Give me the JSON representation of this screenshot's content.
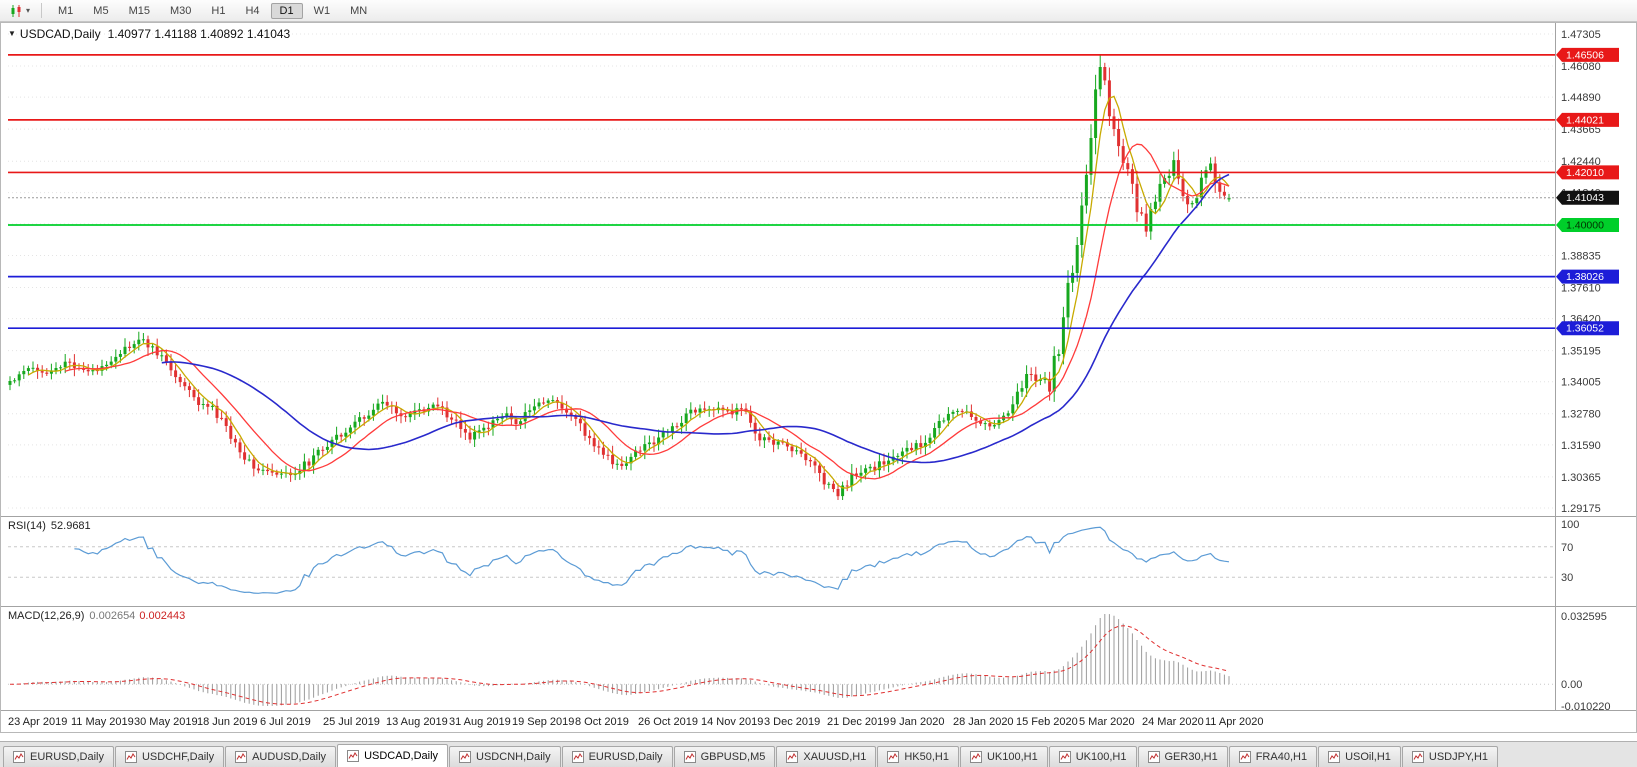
{
  "toolbar": {
    "chart_type_tooltip": "Charts",
    "timeframes": [
      "M1",
      "M5",
      "M15",
      "M30",
      "H1",
      "H4",
      "D1",
      "W1",
      "MN"
    ],
    "active_timeframe": "D1"
  },
  "chart": {
    "title": "USDCAD,Daily",
    "ohlc_text": "1.40977 1.41188 1.40892 1.41043",
    "open": "1.40977",
    "high": "1.41188",
    "low": "1.40892",
    "close": "1.41043",
    "current_price": "1.41043",
    "price_range": {
      "top": 1.47305,
      "bottom": 1.29175
    },
    "y_axis_labels": [
      "1.47305",
      "1.46080",
      "1.44890",
      "1.43665",
      "1.42440",
      "1.41240",
      "1.40040",
      "1.38835",
      "1.37610",
      "1.36420",
      "1.35195",
      "1.34005",
      "1.32780",
      "1.31590",
      "1.30365",
      "1.29175"
    ],
    "x_axis_labels": [
      "23 Apr 2019",
      "11 May 2019",
      "30 May 2019",
      "18 Jun 2019",
      "6 Jul 2019",
      "25 Jul 2019",
      "13 Aug 2019",
      "31 Aug 2019",
      "19 Sep 2019",
      "8 Oct 2019",
      "26 Oct 2019",
      "14 Nov 2019",
      "3 Dec 2019",
      "21 Dec 2019",
      "9 Jan 2020",
      "28 Jan 2020",
      "15 Feb 2020",
      "5 Mar 2020",
      "24 Mar 2020",
      "11 Apr 2020"
    ],
    "levels": [
      {
        "label": "1.46506",
        "price": 1.46506,
        "color": "#e81818",
        "text_color": "#ffffff"
      },
      {
        "label": "1.44021",
        "price": 1.44021,
        "color": "#e81818",
        "text_color": "#ffffff"
      },
      {
        "label": "1.42010",
        "price": 1.4201,
        "color": "#e81818",
        "text_color": "#ffffff"
      },
      {
        "label": "1.40000",
        "price": 1.4,
        "color": "#00cf2a",
        "text_color": "#003300"
      },
      {
        "label": "1.38026",
        "price": 1.38026,
        "color": "#1d1dd8",
        "text_color": "#ffffff"
      },
      {
        "label": "1.36052",
        "price": 1.36052,
        "color": "#1d1dd8",
        "text_color": "#ffffff"
      }
    ],
    "colors": {
      "bull": "#17a81f",
      "bear": "#e03131",
      "ma_fast": "#c8aa00",
      "ma_mid": "#ff3b3b",
      "ma_slow": "#2929cc",
      "grid": "#e4e4e4",
      "axis_text": "#3a3a3a",
      "bid_line": "#9a9a9a",
      "price_box": "#111111"
    }
  },
  "chart_data": {
    "type": "candlestick",
    "symbol": "USDCAD",
    "timeframe": "Daily",
    "bars_count": 266,
    "spike_high": 1.46506,
    "last_bar": {
      "open": 1.40977,
      "high": 1.41188,
      "low": 1.40892,
      "close": 1.41043
    },
    "close_waypoints": [
      [
        0,
        1.34
      ],
      [
        4,
        1.3462
      ],
      [
        8,
        1.3438
      ],
      [
        13,
        1.3472
      ],
      [
        18,
        1.3432
      ],
      [
        22,
        1.349
      ],
      [
        26,
        1.3535
      ],
      [
        29,
        1.3558
      ],
      [
        33,
        1.3495
      ],
      [
        36,
        1.3425
      ],
      [
        40,
        1.3335
      ],
      [
        44,
        1.3292
      ],
      [
        47,
        1.3225
      ],
      [
        50,
        1.3128
      ],
      [
        54,
        1.3068
      ],
      [
        58,
        1.3038
      ],
      [
        62,
        1.3055
      ],
      [
        66,
        1.3108
      ],
      [
        70,
        1.3182
      ],
      [
        74,
        1.3228
      ],
      [
        78,
        1.3282
      ],
      [
        81,
        1.3318
      ],
      [
        85,
        1.3268
      ],
      [
        89,
        1.3288
      ],
      [
        93,
        1.3308
      ],
      [
        96,
        1.3258
      ],
      [
        100,
        1.3188
      ],
      [
        104,
        1.3228
      ],
      [
        107,
        1.3278
      ],
      [
        110,
        1.3242
      ],
      [
        114,
        1.3308
      ],
      [
        118,
        1.3328
      ],
      [
        122,
        1.3272
      ],
      [
        126,
        1.3182
      ],
      [
        130,
        1.3108
      ],
      [
        133,
        1.3068
      ],
      [
        136,
        1.3138
      ],
      [
        140,
        1.3172
      ],
      [
        144,
        1.3228
      ],
      [
        148,
        1.3288
      ],
      [
        152,
        1.3302
      ],
      [
        156,
        1.3282
      ],
      [
        159,
        1.3295
      ],
      [
        163,
        1.3182
      ],
      [
        167,
        1.3165
      ],
      [
        171,
        1.3135
      ],
      [
        175,
        1.3082
      ],
      [
        178,
        1.2998
      ],
      [
        180,
        1.2968
      ],
      [
        183,
        1.3042
      ],
      [
        187,
        1.3062
      ],
      [
        191,
        1.3102
      ],
      [
        195,
        1.3138
      ],
      [
        198,
        1.3162
      ],
      [
        202,
        1.3238
      ],
      [
        206,
        1.3298
      ],
      [
        210,
        1.3258
      ],
      [
        214,
        1.3228
      ],
      [
        218,
        1.3318
      ],
      [
        221,
        1.3428
      ],
      [
        223,
        1.3415
      ],
      [
        226,
        1.3392
      ],
      [
        228,
        1.3545
      ],
      [
        230,
        1.3742
      ],
      [
        232,
        1.3938
      ],
      [
        234,
        1.4228
      ],
      [
        236,
        1.4498
      ],
      [
        237,
        1.4612
      ],
      [
        238,
        1.4562
      ],
      [
        239,
        1.4448
      ],
      [
        241,
        1.4288
      ],
      [
        243,
        1.4192
      ],
      [
        245,
        1.4068
      ],
      [
        247,
        1.3992
      ],
      [
        249,
        1.4088
      ],
      [
        251,
        1.4178
      ],
      [
        253,
        1.4222
      ],
      [
        255,
        1.4108
      ],
      [
        257,
        1.4062
      ],
      [
        259,
        1.4168
      ],
      [
        261,
        1.4228
      ],
      [
        263,
        1.4128
      ],
      [
        265,
        1.4104
      ]
    ],
    "moving_averages": [
      {
        "name": "MA fast",
        "period": 5,
        "color_key": "ma_fast"
      },
      {
        "name": "MA mid",
        "period": 13,
        "color_key": "ma_mid"
      },
      {
        "name": "MA slow",
        "period": 34,
        "color_key": "ma_slow"
      }
    ]
  },
  "rsi": {
    "label": "RSI(14)",
    "value": "52.9681",
    "period": 14,
    "levels": [
      70,
      30
    ],
    "axis_labels": [
      "100",
      "70",
      "30"
    ],
    "axis_values": [
      100,
      70,
      30
    ],
    "color": "#5b9bd5"
  },
  "macd": {
    "label": "MACD(12,26,9)",
    "value_main": "0.002654",
    "value_signal": "0.002443",
    "fast": 12,
    "slow": 26,
    "signal": 9,
    "axis_labels": [
      "0.032595",
      "0.00",
      "-0.010220"
    ],
    "axis_values": [
      0.032595,
      0,
      -0.01022
    ],
    "histogram_color": "#9b9b9b",
    "signal_color": "#e03131"
  },
  "tabs": {
    "active_index": 3,
    "items": [
      "EURUSD,Daily",
      "USDCHF,Daily",
      "AUDUSD,Daily",
      "USDCAD,Daily",
      "USDCNH,Daily",
      "EURUSD,Daily",
      "GBPUSD,M5",
      "XAUUSD,H1",
      "HK50,H1",
      "UK100,H1",
      "UK100,H1",
      "GER30,H1",
      "FRA40,H1",
      "USOil,H1",
      "USDJPY,H1"
    ]
  }
}
